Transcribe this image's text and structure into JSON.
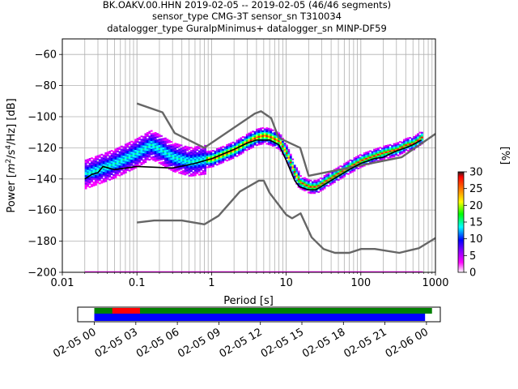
{
  "title_lines": [
    "BK.OAKV.00.HHN   2019-02-05 -- 2019-02-05  (46/46 segments)",
    "sensor_type CMG-3T sensor_sn T310034",
    "datalogger_type GuralpMinimus+ datalogger_sn MINP-DF59"
  ],
  "chart_data": {
    "type": "heatmap",
    "title": "BK.OAKV.00.HHN   2019-02-05 -- 2019-02-05  (46/46 segments)",
    "xlabel": "Period [s]",
    "ylabel": "Power [m²/s⁴/Hz] [dB]",
    "ylabel_parts": {
      "pre": "Power [",
      "m": "m",
      "two": "2",
      "slash_s": "/s",
      "four": "4",
      "tail": "/Hz] [dB]"
    },
    "xscale": "log",
    "xlim": [
      0.01,
      1000
    ],
    "ylim": [
      -200,
      -50
    ],
    "x_ticks": [
      0.01,
      0.1,
      1,
      10,
      100,
      1000
    ],
    "x_tick_labels": [
      "0.01",
      "0.1",
      "1",
      "10",
      "100",
      "1000"
    ],
    "y_ticks": [
      -200,
      -180,
      -160,
      -140,
      -120,
      -100,
      -80,
      -60
    ],
    "y_tick_labels": [
      "−200",
      "−180",
      "−160",
      "−140",
      "−120",
      "−100",
      "−80",
      "−60"
    ],
    "grid": true,
    "colorbar": {
      "label": "[%]",
      "range": [
        0,
        30
      ],
      "ticks": [
        0,
        5,
        10,
        15,
        20,
        25,
        30
      ],
      "tick_labels": [
        "0",
        "5",
        "10",
        "15",
        "20",
        "25",
        "30"
      ],
      "colors": [
        "#ffffff",
        "#ff00ff",
        "#8000ff",
        "#0000ff",
        "#00ffff",
        "#00ff00",
        "#ffff00",
        "#ff8000",
        "#ff0000",
        "#000000"
      ]
    },
    "series": [
      {
        "role": "noise_model_high",
        "color": "#666666",
        "points": [
          [
            0.1,
            -91.5
          ],
          [
            0.22,
            -97.2
          ],
          [
            0.32,
            -110.5
          ],
          [
            0.8,
            -120
          ],
          [
            3.8,
            -98
          ],
          [
            4.6,
            -96.5
          ],
          [
            6.3,
            -101
          ],
          [
            7.9,
            -113.5
          ],
          [
            15.4,
            -120
          ],
          [
            20,
            -138
          ],
          [
            354,
            -126
          ],
          [
            1000,
            -111
          ]
        ]
      },
      {
        "role": "noise_model_low",
        "color": "#666666",
        "points": [
          [
            0.1,
            -168
          ],
          [
            0.17,
            -166.7
          ],
          [
            0.4,
            -166.7
          ],
          [
            0.8,
            -169.2
          ],
          [
            1.24,
            -163.7
          ],
          [
            2.4,
            -148.1
          ],
          [
            4.3,
            -141.1
          ],
          [
            5.0,
            -141.1
          ],
          [
            6.0,
            -149
          ],
          [
            10.0,
            -163
          ],
          [
            12.0,
            -165.3
          ],
          [
            15.6,
            -162.1
          ],
          [
            21.9,
            -177.5
          ],
          [
            31.6,
            -185
          ],
          [
            45,
            -187.5
          ],
          [
            70,
            -187.5
          ],
          [
            101,
            -185
          ],
          [
            154,
            -185
          ],
          [
            328,
            -187.5
          ],
          [
            600,
            -184.5
          ],
          [
            1000,
            -178
          ]
        ]
      },
      {
        "role": "mode",
        "color": "#000000",
        "points": [
          [
            0.02,
            -140
          ],
          [
            0.025,
            -137
          ],
          [
            0.03,
            -136
          ],
          [
            0.035,
            -132
          ],
          [
            0.05,
            -134
          ],
          [
            0.1,
            -132
          ],
          [
            0.3,
            -133
          ],
          [
            0.6,
            -130
          ],
          [
            1,
            -127
          ],
          [
            2,
            -121
          ],
          [
            3,
            -117
          ],
          [
            4,
            -115
          ],
          [
            6,
            -115
          ],
          [
            8,
            -118
          ],
          [
            10,
            -128
          ],
          [
            13,
            -141
          ],
          [
            15,
            -145
          ],
          [
            20,
            -147
          ],
          [
            25,
            -147
          ],
          [
            40,
            -141
          ],
          [
            70,
            -134
          ],
          [
            100,
            -130
          ],
          [
            150,
            -127
          ],
          [
            200,
            -126
          ],
          [
            300,
            -122
          ],
          [
            400,
            -120
          ],
          [
            500,
            -118
          ],
          [
            650,
            -115
          ]
        ]
      },
      {
        "role": "density",
        "points": [
          [
            0.02,
            -137
          ],
          [
            0.03,
            -134
          ],
          [
            0.05,
            -130
          ],
          [
            0.1,
            -123
          ],
          [
            0.15,
            -118
          ],
          [
            0.2,
            -121
          ],
          [
            0.3,
            -126
          ],
          [
            0.5,
            -129
          ],
          [
            1,
            -127
          ],
          [
            2,
            -121
          ],
          [
            3,
            -116
          ],
          [
            4,
            -113
          ],
          [
            5,
            -112
          ],
          [
            6,
            -113
          ],
          [
            8,
            -116
          ],
          [
            10,
            -124
          ],
          [
            13,
            -137
          ],
          [
            15,
            -142
          ],
          [
            20,
            -145
          ],
          [
            25,
            -145
          ],
          [
            40,
            -139
          ],
          [
            70,
            -132
          ],
          [
            100,
            -128
          ],
          [
            150,
            -125
          ],
          [
            200,
            -123
          ],
          [
            300,
            -121
          ],
          [
            400,
            -118
          ],
          [
            500,
            -117
          ],
          [
            650,
            -113
          ]
        ]
      }
    ]
  },
  "coverage": {
    "tick_labels": [
      "02-05 00",
      "02-05 03",
      "02-05 06",
      "02-05 09",
      "02-05 12",
      "02-05 15",
      "02-05 18",
      "02-05 21",
      "02-06 00"
    ],
    "tick_hours": [
      0,
      3,
      6,
      9,
      12,
      15,
      18,
      21,
      24
    ],
    "range_hours": [
      -1.2,
      25.0
    ],
    "bars": [
      {
        "color": "#008000",
        "start": 0,
        "end": 24.4,
        "row": "top"
      },
      {
        "color": "#ff0000",
        "start": 1.3,
        "end": 3.3,
        "row": "top"
      },
      {
        "color": "#0000ff",
        "start": 0,
        "end": 23.9,
        "row": "bottom"
      }
    ]
  }
}
